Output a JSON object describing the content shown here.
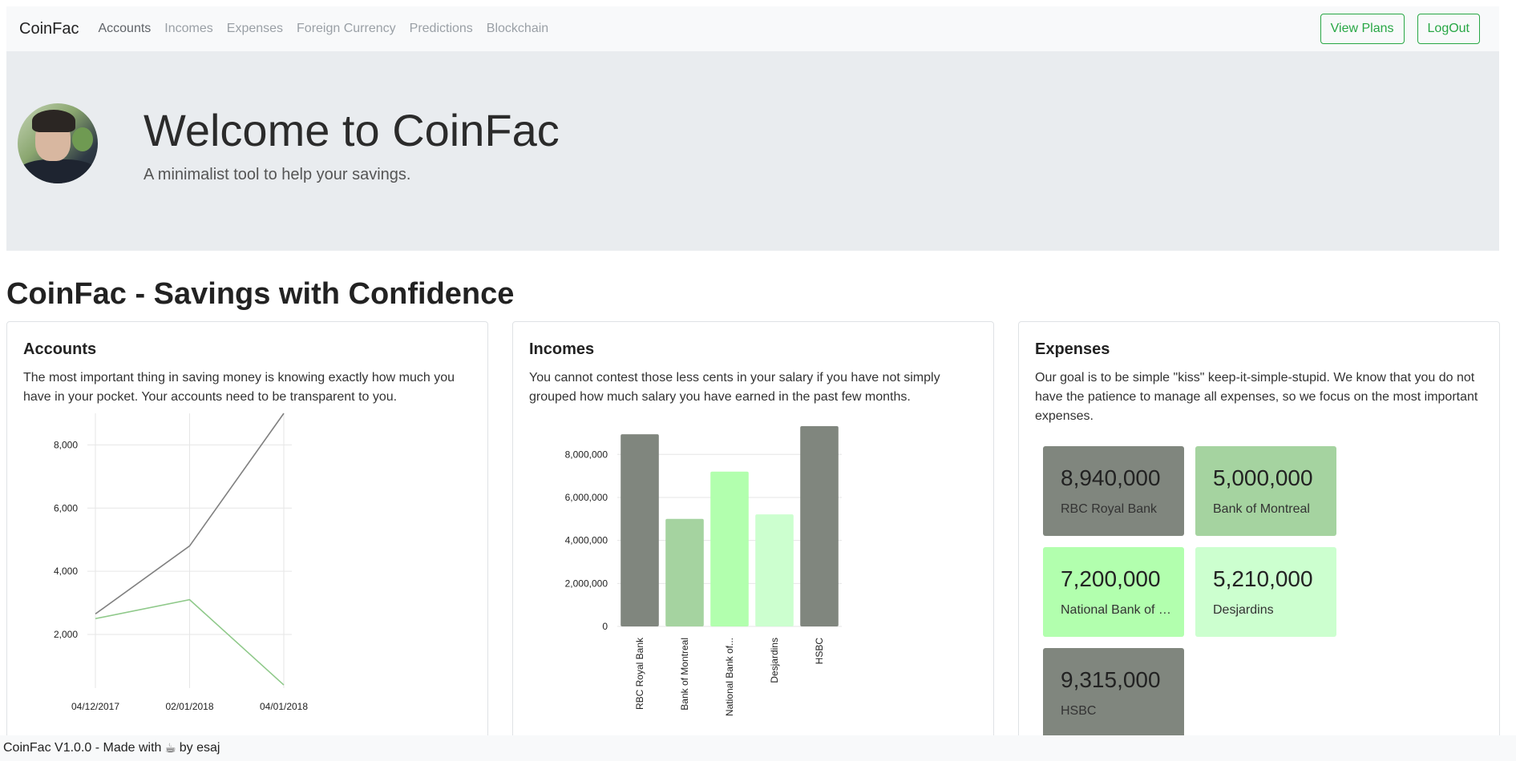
{
  "navbar": {
    "brand": "CoinFac",
    "links": [
      "Accounts",
      "Incomes",
      "Expenses",
      "Foreign Currency",
      "Predictions",
      "Blockchain"
    ],
    "view_plans": "View Plans",
    "logout": "LogOut",
    "accent": "#28a745"
  },
  "jumbotron": {
    "title": "Welcome to CoinFac",
    "subtitle": "A minimalist tool to help your savings."
  },
  "heading": "CoinFac - Savings with Confidence",
  "cards": {
    "accounts": {
      "title": "Accounts",
      "text": "The most important thing in saving money is knowing exactly how much you have in your pocket. Your accounts need to be transparent to you."
    },
    "incomes": {
      "title": "Incomes",
      "text": "You cannot contest those less cents in your salary if you have not simply grouped how much salary you have earned in the past few months."
    },
    "expenses": {
      "title": "Expenses",
      "text": "Our goal is to be simple \"kiss\" keep-it-simple-stupid. We know that you do not have the patience to manage all expenses, so we focus on the most important expenses.",
      "tiles": [
        {
          "value": "8,940,000",
          "label": "RBC Royal Bank",
          "color": "#80867e"
        },
        {
          "value": "5,000,000",
          "label": "Bank of Montreal",
          "color": "#a5d3a0"
        },
        {
          "value": "7,200,000",
          "label": "National Bank of C...",
          "color": "#b2ffae"
        },
        {
          "value": "5,210,000",
          "label": "Desjardins",
          "color": "#ccffcf"
        },
        {
          "value": "9,315,000",
          "label": "HSBC",
          "color": "#80867e"
        }
      ]
    }
  },
  "chart_data": [
    {
      "type": "line",
      "x": [
        "04/12/2017",
        "02/01/2018",
        "04/01/2018"
      ],
      "yticks": [
        "2,000",
        "4,000",
        "6,000",
        "8,000"
      ],
      "ylim": [
        300,
        9000
      ],
      "grid": true,
      "series": [
        {
          "values": [
            2650,
            4800,
            9000
          ],
          "color": "#808080"
        },
        {
          "values": [
            2500,
            3100,
            400
          ],
          "color": "#8fc98a"
        }
      ]
    },
    {
      "type": "bar",
      "categories": [
        "RBC Royal Bank",
        "Bank of Montreal",
        "National Bank of...",
        "Desjardins",
        "HSBC"
      ],
      "values": [
        8940000,
        5000000,
        7200000,
        5210000,
        9315000
      ],
      "colors": [
        "#80867e",
        "#a5d3a0",
        "#b2ffae",
        "#ccffcf",
        "#80867e"
      ],
      "yticks": [
        "0",
        "2,000,000",
        "4,000,000",
        "6,000,000",
        "8,000,000"
      ],
      "ylim": [
        0,
        9315000
      ],
      "grid": true
    }
  ],
  "footer": {
    "prefix": "CoinFac V1.0.0 - Made with",
    "icon": "coffee-icon",
    "suffix": "by esaj"
  }
}
